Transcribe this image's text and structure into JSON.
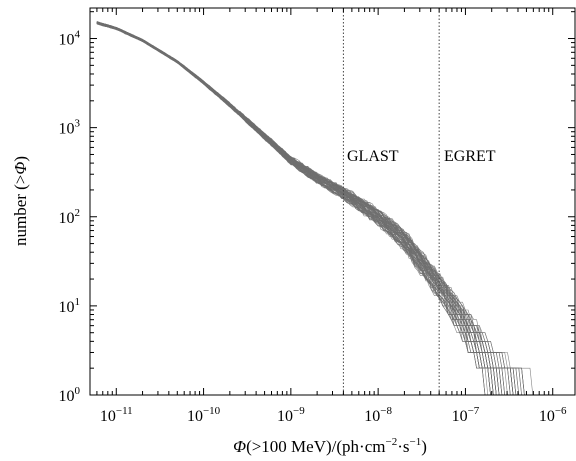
{
  "chart_data": {
    "type": "line",
    "title": "",
    "xlabel": {
      "prefix": "Φ",
      "middle": "(>100 MeV)/(ph·cm",
      "exp1": "−2",
      "dot": "·s",
      "exp2": "−1",
      "suffix": ")"
    },
    "ylabel": {
      "prefix": "number (>",
      "symbol": "Φ",
      "suffix": ")"
    },
    "x_scale": "log",
    "y_scale": "log",
    "xlim": [
      5e-12,
      1.8e-06
    ],
    "ylim": [
      1,
      22000
    ],
    "x_ticks": [
      {
        "value": 1e-11,
        "base": "10",
        "exp": "−11"
      },
      {
        "value": 1e-10,
        "base": "10",
        "exp": "−10"
      },
      {
        "value": 1e-09,
        "base": "10",
        "exp": "−9"
      },
      {
        "value": 1e-08,
        "base": "10",
        "exp": "−8"
      },
      {
        "value": 1e-07,
        "base": "10",
        "exp": "−7"
      },
      {
        "value": 1e-06,
        "base": "10",
        "exp": "−6"
      }
    ],
    "y_ticks": [
      {
        "value": 1,
        "base": "10",
        "exp": "0"
      },
      {
        "value": 10,
        "base": "10",
        "exp": "1"
      },
      {
        "value": 100,
        "base": "10",
        "exp": "2"
      },
      {
        "value": 1000,
        "base": "10",
        "exp": "3"
      },
      {
        "value": 10000,
        "base": "10",
        "exp": "4"
      }
    ],
    "grid": false,
    "line_color": "#6e6e6e",
    "n_realizations": 60,
    "mean_curve": {
      "x": [
        6e-12,
        1e-11,
        2e-11,
        5e-11,
        1e-10,
        2e-10,
        5e-10,
        1e-09,
        2e-09,
        4e-09,
        1e-08,
        2e-08,
        5e-08,
        1e-07,
        2e-07,
        5e-07,
        1e-06
      ],
      "y": [
        15000,
        13000,
        9500,
        5500,
        3200,
        1800,
        800,
        430,
        270,
        185,
        100,
        55,
        17,
        6.5,
        2.5,
        1.2,
        1
      ]
    },
    "reference_lines": [
      {
        "x": 4e-09,
        "label": "GLAST"
      },
      {
        "x": 5e-08,
        "label": "EGRET"
      }
    ]
  }
}
